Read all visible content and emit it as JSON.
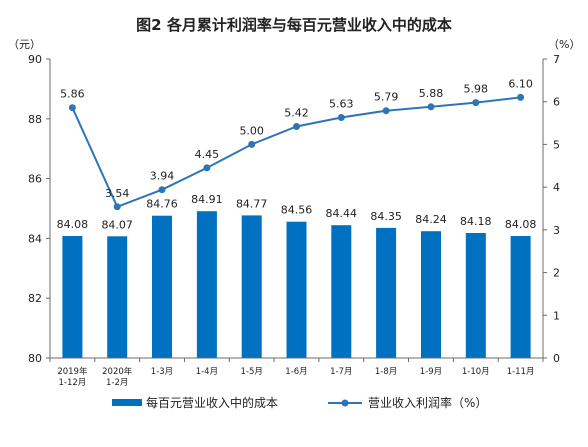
{
  "chart_data": {
    "type": "bar+line",
    "title": "图2  各月累计利润率与每百元营业收入中的成本",
    "y_left_unit": "（元）",
    "y_right_unit": "（%）",
    "y_left_lim": [
      80,
      90
    ],
    "y_left_ticks": [
      "80",
      "82",
      "84",
      "86",
      "88",
      "90"
    ],
    "y_right_lim": [
      0,
      7
    ],
    "y_right_ticks": [
      "0",
      "1",
      "2",
      "3",
      "4",
      "5",
      "6",
      "7"
    ],
    "categories": [
      [
        "2019年",
        "1-12月"
      ],
      [
        "2020年",
        "1-2月"
      ],
      [
        "1-3月"
      ],
      [
        "1-4月"
      ],
      [
        "1-5月"
      ],
      [
        "1-6月"
      ],
      [
        "1-7月"
      ],
      [
        "1-8月"
      ],
      [
        "1-9月"
      ],
      [
        "1-10月"
      ],
      [
        "1-11月"
      ]
    ],
    "series": [
      {
        "name": "每百元营业收入中的成本",
        "kind": "bar",
        "axis": "left",
        "color": "#0070c0",
        "values": [
          84.08,
          84.07,
          84.76,
          84.91,
          84.77,
          84.56,
          84.44,
          84.35,
          84.24,
          84.18,
          84.08
        ],
        "labels": [
          "84.08",
          "84.07",
          "84.76",
          "84.91",
          "84.77",
          "84.56",
          "84.44",
          "84.35",
          "84.24",
          "84.18",
          "84.08"
        ]
      },
      {
        "name": "营业收入利润率（%）",
        "kind": "line",
        "axis": "right",
        "color": "#2e75b6",
        "values": [
          5.86,
          3.54,
          3.94,
          4.45,
          5.0,
          5.42,
          5.63,
          5.79,
          5.88,
          5.98,
          6.1
        ],
        "labels": [
          "5.86",
          "3.54",
          "3.94",
          "4.45",
          "5.00",
          "5.42",
          "5.63",
          "5.79",
          "5.88",
          "5.98",
          "6.10"
        ]
      }
    ],
    "grid": false,
    "legend_position": "bottom"
  }
}
